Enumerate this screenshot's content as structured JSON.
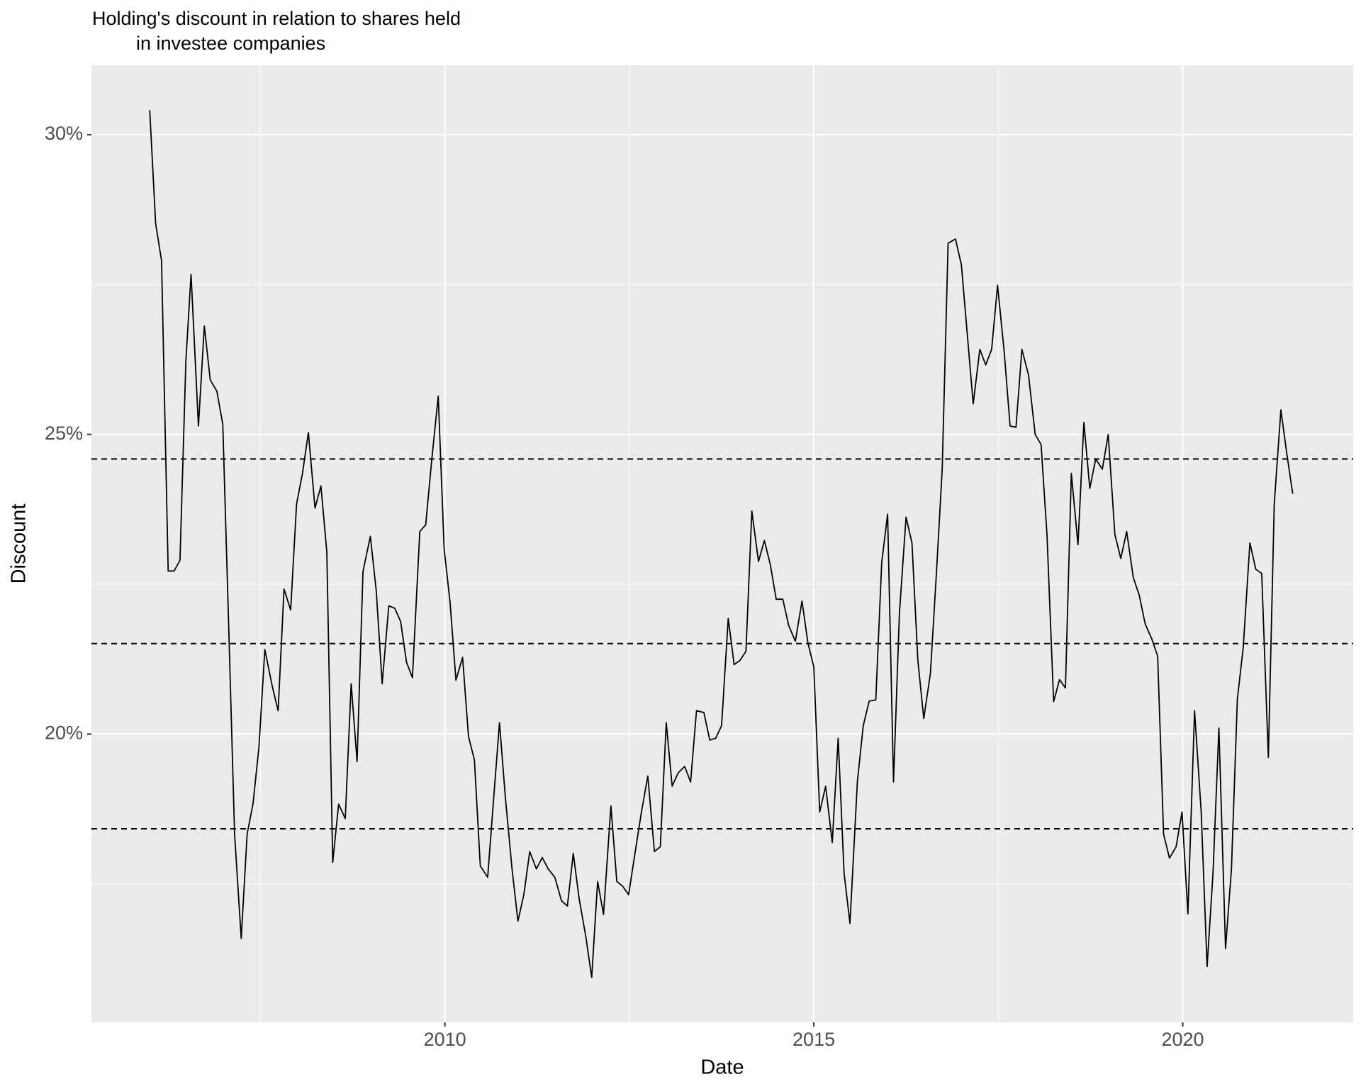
{
  "chart_data": {
    "type": "line",
    "title": [
      "Holding's discount in relation to shares held",
      "in investee companies"
    ],
    "x_label": "Date",
    "y_label": "Discount",
    "xlim": [
      2005.21,
      2022.31
    ],
    "ylim": [
      15.19,
      31.16
    ],
    "xticks": [
      2010,
      2015,
      2020
    ],
    "minor_xticks": [
      2007.5,
      2012.5,
      2017.5
    ],
    "yticks": [
      {
        "value": 20,
        "label": "20%"
      },
      {
        "value": 25,
        "label": "25%"
      },
      {
        "value": 30,
        "label": "30%"
      }
    ],
    "minor_yticks": [
      17.5,
      22.5,
      27.5
    ],
    "grid": true,
    "color": "#000000",
    "hlines": [
      24.59,
      21.51,
      18.42
    ],
    "x": [
      2006.0,
      2006.08,
      2006.16,
      2006.25,
      2006.33,
      2006.41,
      2006.49,
      2006.56,
      2006.66,
      2006.74,
      2006.82,
      2006.91,
      2006.99,
      2007.07,
      2007.15,
      2007.24,
      2007.32,
      2007.4,
      2007.48,
      2007.56,
      2007.66,
      2007.74,
      2007.82,
      2007.91,
      2007.99,
      2008.07,
      2008.15,
      2008.24,
      2008.32,
      2008.4,
      2008.48,
      2008.56,
      2008.65,
      2008.73,
      2008.81,
      2008.89,
      2008.99,
      2009.07,
      2009.15,
      2009.24,
      2009.32,
      2009.4,
      2009.48,
      2009.56,
      2009.66,
      2009.74,
      2009.82,
      2009.91,
      2009.99,
      2010.07,
      2010.15,
      2010.24,
      2010.32,
      2010.4,
      2010.48,
      2010.58,
      2010.66,
      2010.74,
      2010.82,
      2010.91,
      2010.99,
      2011.07,
      2011.15,
      2011.24,
      2011.32,
      2011.4,
      2011.49,
      2011.58,
      2011.66,
      2011.74,
      2011.82,
      2011.91,
      2011.99,
      2012.07,
      2012.15,
      2012.25,
      2012.33,
      2012.41,
      2012.49,
      2012.58,
      2012.66,
      2012.75,
      2012.84,
      2012.92,
      2013.0,
      2013.08,
      2013.16,
      2013.25,
      2013.33,
      2013.41,
      2013.51,
      2013.59,
      2013.67,
      2013.75,
      2013.84,
      2013.92,
      2014.0,
      2014.08,
      2014.16,
      2014.25,
      2014.33,
      2014.41,
      2014.49,
      2014.58,
      2014.66,
      2014.75,
      2014.84,
      2014.92,
      2015.0,
      2015.08,
      2015.16,
      2015.25,
      2015.33,
      2015.41,
      2015.49,
      2015.59,
      2015.67,
      2015.75,
      2015.84,
      2015.92,
      2016.0,
      2016.08,
      2016.16,
      2016.25,
      2016.33,
      2016.41,
      2016.49,
      2016.58,
      2016.66,
      2016.74,
      2016.82,
      2016.92,
      2017.0,
      2017.08,
      2017.16,
      2017.25,
      2017.33,
      2017.41,
      2017.49,
      2017.58,
      2017.66,
      2017.74,
      2017.82,
      2017.91,
      2018.0,
      2018.08,
      2018.16,
      2018.25,
      2018.33,
      2018.41,
      2018.49,
      2018.58,
      2018.66,
      2018.74,
      2018.82,
      2018.91,
      2018.99,
      2019.08,
      2019.16,
      2019.24,
      2019.33,
      2019.41,
      2019.49,
      2019.58,
      2019.66,
      2019.74,
      2019.82,
      2019.91,
      2019.99,
      2020.07,
      2020.16,
      2020.25,
      2020.33,
      2020.41,
      2020.49,
      2020.58,
      2020.66,
      2020.74,
      2020.82,
      2020.91,
      2020.99,
      2021.07,
      2021.16,
      2021.24,
      2021.33,
      2021.41,
      2021.49
    ],
    "values": [
      30.41,
      28.52,
      27.9,
      22.72,
      22.72,
      22.9,
      26.23,
      27.67,
      25.14,
      26.81,
      25.91,
      25.72,
      25.17,
      21.81,
      18.33,
      16.59,
      18.33,
      18.84,
      19.78,
      21.41,
      20.8,
      20.39,
      22.42,
      22.07,
      23.84,
      24.35,
      25.03,
      23.77,
      24.14,
      23.04,
      17.86,
      18.83,
      18.59,
      20.84,
      19.54,
      22.71,
      23.3,
      22.39,
      20.84,
      22.14,
      22.1,
      21.88,
      21.2,
      20.94,
      23.38,
      23.49,
      24.55,
      25.64,
      23.09,
      22.2,
      20.9,
      21.28,
      19.96,
      19.57,
      17.8,
      17.61,
      18.91,
      20.19,
      18.94,
      17.75,
      16.88,
      17.32,
      18.04,
      17.75,
      17.94,
      17.75,
      17.61,
      17.22,
      17.13,
      18.01,
      17.25,
      16.62,
      15.94,
      17.54,
      16.99,
      18.8,
      17.54,
      17.46,
      17.32,
      18.04,
      18.67,
      19.3,
      18.04,
      18.12,
      20.19,
      19.13,
      19.35,
      19.46,
      19.2,
      20.39,
      20.36,
      19.9,
      19.93,
      20.14,
      21.93,
      21.16,
      21.23,
      21.38,
      23.72,
      22.88,
      23.23,
      22.83,
      22.25,
      22.25,
      21.81,
      21.55,
      22.22,
      21.52,
      21.12,
      18.7,
      19.13,
      18.19,
      19.93,
      17.68,
      16.84,
      19.2,
      20.14,
      20.55,
      20.57,
      22.86,
      23.67,
      19.2,
      22.01,
      23.62,
      23.19,
      21.23,
      20.26,
      21.01,
      22.65,
      24.42,
      28.19,
      28.26,
      27.83,
      26.67,
      25.51,
      26.42,
      26.16,
      26.42,
      27.49,
      26.38,
      25.14,
      25.12,
      26.42,
      25.99,
      25.0,
      24.83,
      23.33,
      20.54,
      20.91,
      20.77,
      24.35,
      23.16,
      25.2,
      24.1,
      24.59,
      24.42,
      25.0,
      23.33,
      22.93,
      23.38,
      22.61,
      22.32,
      21.84,
      21.59,
      21.3,
      18.33,
      17.93,
      18.12,
      18.7,
      17.0,
      20.39,
      18.7,
      16.12,
      17.68,
      20.1,
      16.42,
      17.75,
      20.58,
      21.45,
      23.19,
      22.75,
      22.68,
      19.61,
      23.84,
      25.41,
      24.68,
      24.01
    ]
  }
}
